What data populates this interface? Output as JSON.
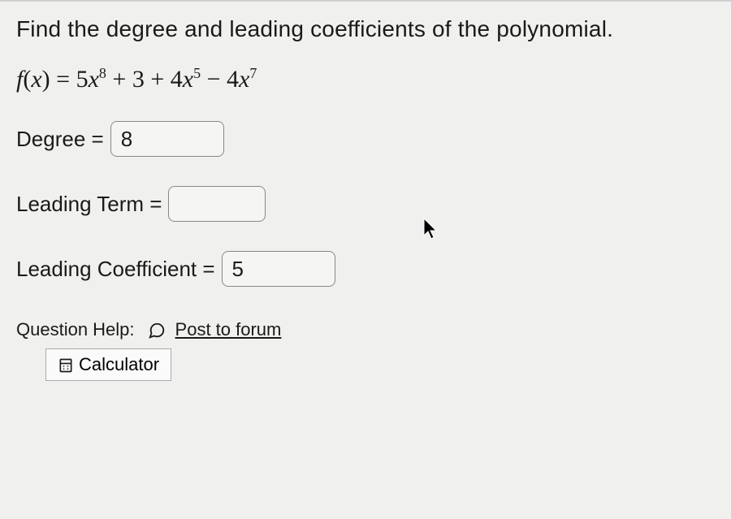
{
  "question": {
    "prompt": "Find the degree and leading coefficients of the polynomial.",
    "equation_html": "<span class='fn'>f</span>(<span class='fn'>x</span>) = 5<span class='fn'>x</span><sup>8</sup> + 3 + 4<span class='fn'>x</span><sup>5</sup> − 4<span class='fn'>x</span><sup>7</sup>"
  },
  "fields": {
    "degree": {
      "label": "Degree =",
      "value": "8"
    },
    "leading_term": {
      "label": "Leading Term =",
      "value": ""
    },
    "leading_coefficient": {
      "label": "Leading Coefficient =",
      "value": "5"
    }
  },
  "help": {
    "label": "Question Help:",
    "forum_link": "Post to forum",
    "calculator_label": "Calculator"
  },
  "colors": {
    "background": "#f0f0ee",
    "text": "#1a1a1a",
    "box_border": "#888888"
  }
}
